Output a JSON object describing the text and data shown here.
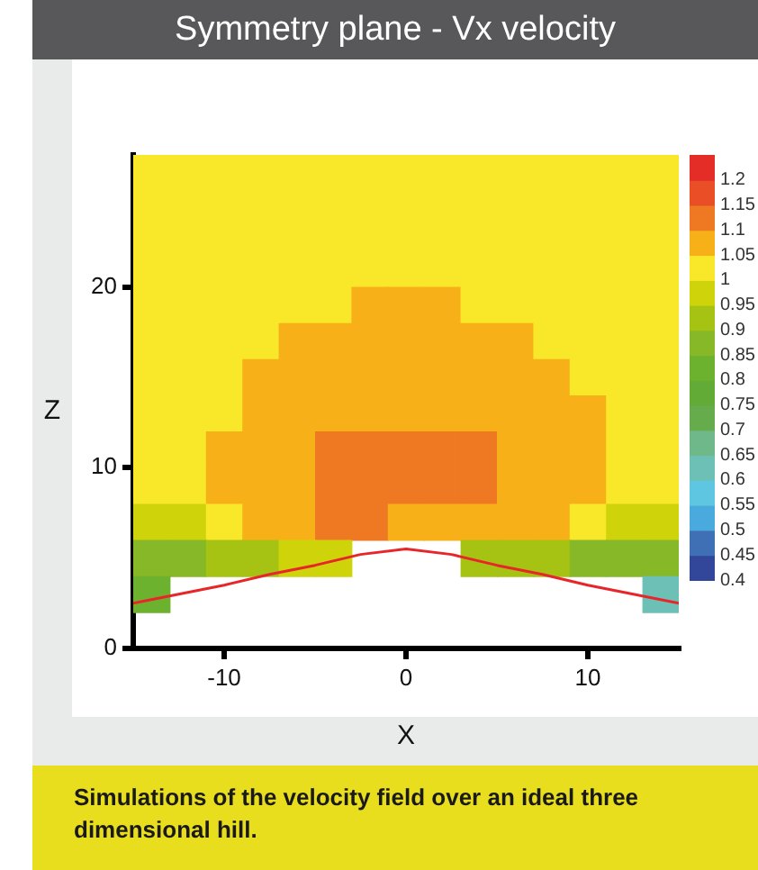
{
  "chart_data": {
    "type": "heatmap",
    "title": "Symmetry plane - Vx velocity",
    "xlabel": "X",
    "ylabel": "Z",
    "annotations": [
      "Simulations of the velocity field over an ideal three dimensional hill."
    ],
    "x": [
      -14,
      -12,
      -10,
      -8,
      -6,
      -4,
      -2,
      0,
      2,
      4,
      6,
      8,
      10,
      12,
      14
    ],
    "y": [
      27,
      25,
      23,
      21,
      19,
      17,
      15,
      13,
      11,
      9,
      7,
      5,
      3
    ],
    "cells": [
      [
        1.02,
        1.02,
        1.02,
        1.02,
        1.02,
        1.02,
        1.02,
        1.02,
        1.02,
        1.02,
        1.02,
        1.02,
        1.02,
        1.02,
        1.02
      ],
      [
        1.02,
        1.02,
        1.02,
        1.02,
        1.02,
        1.02,
        1.02,
        1.02,
        1.02,
        1.02,
        1.02,
        1.02,
        1.02,
        1.02,
        1.02
      ],
      [
        1.02,
        1.02,
        1.02,
        1.02,
        1.02,
        1.02,
        1.02,
        1.02,
        1.02,
        1.02,
        1.02,
        1.02,
        1.02,
        1.02,
        1.02
      ],
      [
        1.02,
        1.02,
        1.02,
        1.02,
        1.02,
        1.02,
        1.02,
        1.02,
        1.02,
        1.02,
        1.02,
        1.02,
        1.02,
        1.02,
        1.02
      ],
      [
        1.02,
        1.02,
        1.02,
        1.02,
        1.02,
        1.02,
        1.07,
        1.07,
        1.07,
        1.02,
        1.02,
        1.02,
        1.02,
        1.02,
        1.02
      ],
      [
        1.02,
        1.02,
        1.02,
        1.02,
        1.07,
        1.07,
        1.07,
        1.07,
        1.07,
        1.07,
        1.07,
        1.02,
        1.02,
        1.02,
        1.02
      ],
      [
        1.02,
        1.02,
        1.02,
        1.07,
        1.07,
        1.07,
        1.07,
        1.07,
        1.07,
        1.07,
        1.07,
        1.07,
        1.02,
        1.02,
        1.02
      ],
      [
        1.02,
        1.02,
        1.02,
        1.07,
        1.07,
        1.07,
        1.07,
        1.07,
        1.07,
        1.07,
        1.07,
        1.07,
        1.07,
        1.02,
        1.02
      ],
      [
        1.02,
        1.02,
        1.07,
        1.07,
        1.07,
        1.12,
        1.12,
        1.12,
        1.12,
        1.12,
        1.07,
        1.07,
        1.07,
        1.02,
        1.02
      ],
      [
        1.02,
        1.02,
        1.07,
        1.07,
        1.07,
        1.12,
        1.12,
        1.12,
        1.12,
        1.12,
        1.07,
        1.07,
        1.07,
        1.02,
        1.02
      ],
      [
        0.97,
        0.97,
        1.02,
        1.07,
        1.07,
        1.12,
        1.12,
        1.07,
        1.07,
        1.07,
        1.07,
        1.07,
        1.02,
        0.97,
        0.97
      ],
      [
        0.87,
        0.87,
        0.92,
        0.92,
        0.97,
        0.97,
        null,
        null,
        null,
        0.92,
        0.92,
        0.92,
        0.87,
        0.87,
        0.87
      ],
      [
        0.82,
        null,
        null,
        null,
        null,
        null,
        null,
        null,
        null,
        null,
        null,
        null,
        null,
        null,
        0.62
      ]
    ],
    "colors": [
      "#32479a",
      "#3f6fb4",
      "#4aa9dd",
      "#5ec6e0",
      "#6dc0b6",
      "#6fb88a",
      "#66ac4c",
      "#63ab37",
      "#6db22e",
      "#86b827",
      "#a6c313",
      "#cfd40a",
      "#f9e82a",
      "#f8b019",
      "#ef7822",
      "#ea4e26",
      "#e42d26"
    ],
    "clim": [
      0.4,
      1.25
    ],
    "cticks": [
      0.4,
      0.45,
      0.5,
      0.55,
      0.6,
      0.65,
      0.7,
      0.75,
      0.8,
      0.85,
      0.9,
      0.95,
      1,
      1.05,
      1.1,
      1.15,
      1.2
    ],
    "series": [
      {
        "type": "line",
        "color": "#e8262a",
        "x": [
          -15,
          -12.5,
          -10,
          -7.5,
          -5,
          -2.5,
          0,
          2.5,
          5,
          7.5,
          10,
          12.5,
          15
        ],
        "values": [
          2.5,
          3.0,
          3.5,
          4.1,
          4.6,
          5.2,
          5.5,
          5.2,
          4.6,
          4.1,
          3.5,
          3.0,
          2.5
        ]
      }
    ],
    "xlim": [
      -15,
      15
    ],
    "ylim": [
      0,
      27.3
    ],
    "xticks": [
      -10,
      0,
      10
    ],
    "yticks": [
      0,
      10,
      20
    ],
    "grid": false
  }
}
